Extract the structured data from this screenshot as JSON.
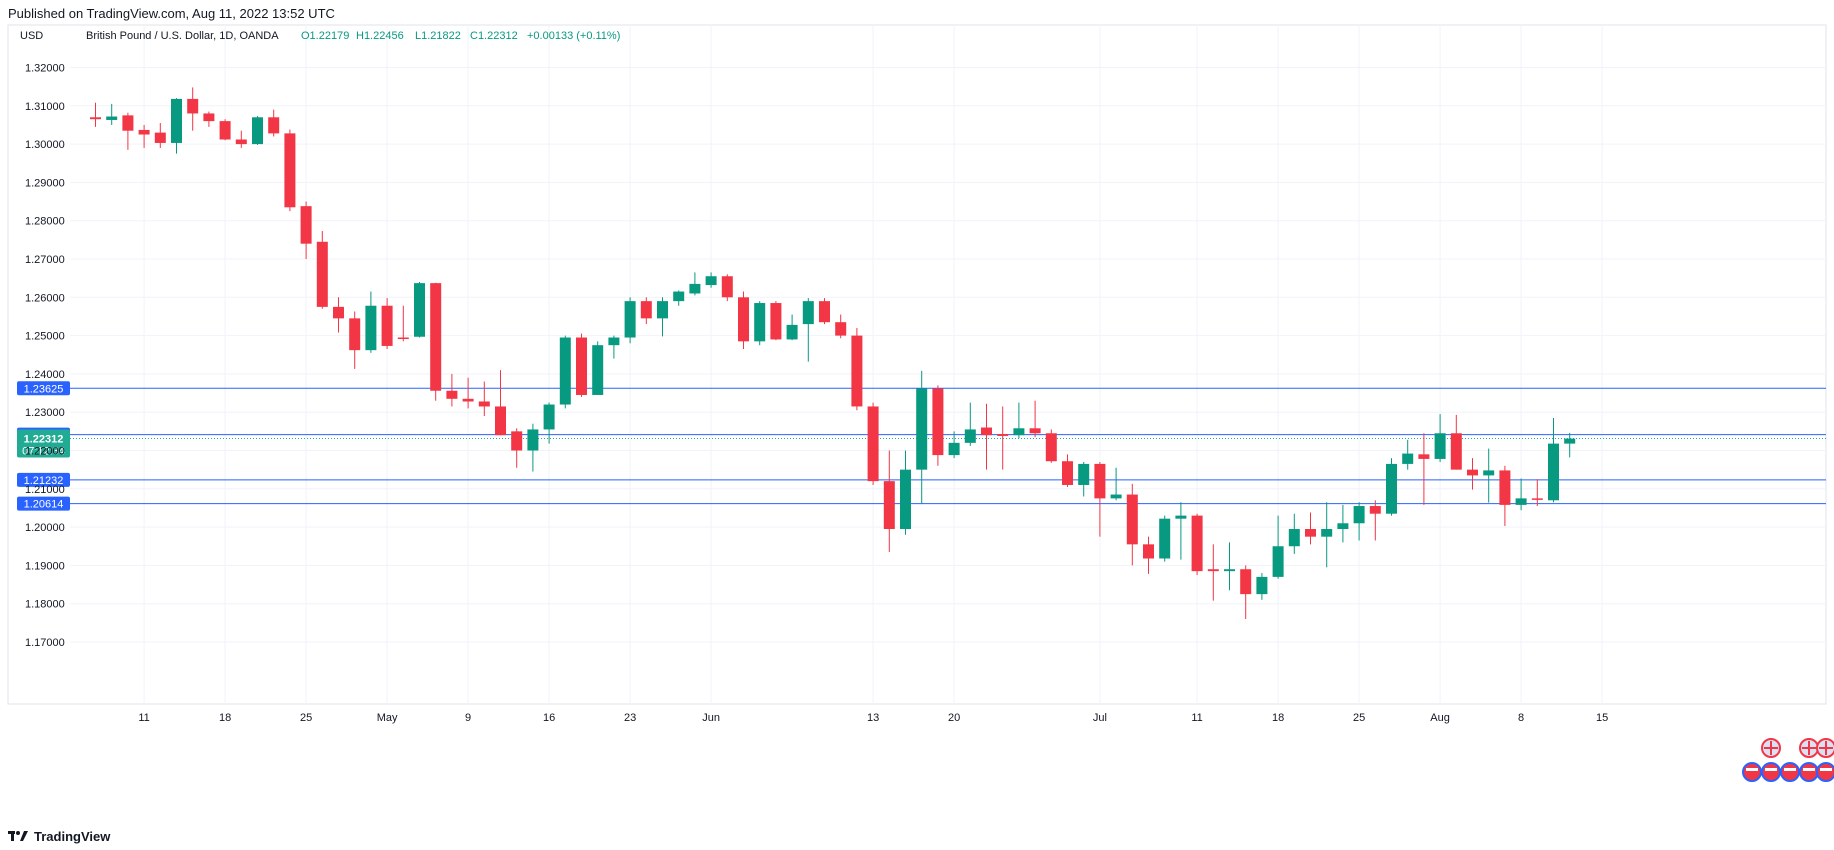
{
  "published": "Published on TradingView.com, Aug 11, 2022 13:52 UTC",
  "footer": {
    "brand": "TradingView",
    "logo_icon": "tradingview-logo-icon"
  },
  "colors": {
    "up": "#089981",
    "down": "#f23645",
    "grid": "#f0f3fa",
    "hline": "#2962ff",
    "hline_teal": "#22ab94",
    "axis_text": "#131722"
  },
  "chart_data": {
    "type": "candlestick",
    "currency": "USD",
    "symbol": "British Pound / U.S. Dollar, 1D, OANDA",
    "ohlc_header": {
      "O": "O1.22179",
      "H": "H1.22456",
      "L": "L1.21822",
      "C": "C1.22312",
      "change": "+0.00133 (+0.11%)"
    },
    "ylim": [
      1.1625,
      1.3265
    ],
    "y_ticks": [
      "1.32000",
      "1.31000",
      "1.30000",
      "1.29000",
      "1.28000",
      "1.27000",
      "1.26000",
      "1.25000",
      "1.24000",
      "1.23000",
      "1.22000",
      "1.21000",
      "1.20000",
      "1.19000",
      "1.18000",
      "1.17000"
    ],
    "x_ticks": [
      {
        "label": "11",
        "index": 3
      },
      {
        "label": "18",
        "index": 8
      },
      {
        "label": "25",
        "index": 13
      },
      {
        "label": "May",
        "index": 18
      },
      {
        "label": "9",
        "index": 23
      },
      {
        "label": "16",
        "index": 28
      },
      {
        "label": "23",
        "index": 33
      },
      {
        "label": "Jun",
        "index": 38
      },
      {
        "label": "13",
        "index": 48
      },
      {
        "label": "20",
        "index": 53
      },
      {
        "label": "Jul",
        "index": 62
      },
      {
        "label": "11",
        "index": 68
      },
      {
        "label": "18",
        "index": 73
      },
      {
        "label": "25",
        "index": 78
      },
      {
        "label": "Aug",
        "index": 83
      },
      {
        "label": "8",
        "index": 88
      },
      {
        "label": "15",
        "index": 93
      }
    ],
    "horizontal_lines": [
      {
        "label": "1.23625",
        "value": 1.23625,
        "color": "#2962ff"
      },
      {
        "label": "1.22415",
        "value": 1.22415,
        "color": "#2962ff"
      },
      {
        "label": "1.21232",
        "value": 1.21232,
        "color": "#2962ff"
      },
      {
        "label": "1.20614",
        "value": 1.20614,
        "color": "#2962ff"
      }
    ],
    "last_price": {
      "label": "1.22312",
      "value": 1.22312,
      "countdown": "07:12:34",
      "color": "#22ab94"
    },
    "candles": [
      {
        "i": 0,
        "o": 1.307,
        "h": 1.3108,
        "l": 1.3045,
        "c": 1.3065
      },
      {
        "i": 1,
        "o": 1.3063,
        "h": 1.3105,
        "l": 1.305,
        "c": 1.3072
      },
      {
        "i": 2,
        "o": 1.3075,
        "h": 1.3082,
        "l": 1.2985,
        "c": 1.3035
      },
      {
        "i": 3,
        "o": 1.3037,
        "h": 1.305,
        "l": 1.299,
        "c": 1.3025
      },
      {
        "i": 4,
        "o": 1.303,
        "h": 1.3055,
        "l": 1.299,
        "c": 1.3003
      },
      {
        "i": 5,
        "o": 1.3003,
        "h": 1.312,
        "l": 1.2975,
        "c": 1.3118
      },
      {
        "i": 6,
        "o": 1.3118,
        "h": 1.3148,
        "l": 1.3035,
        "c": 1.308
      },
      {
        "i": 7,
        "o": 1.308,
        "h": 1.3085,
        "l": 1.3045,
        "c": 1.306
      },
      {
        "i": 8,
        "o": 1.306,
        "h": 1.3065,
        "l": 1.301,
        "c": 1.3012
      },
      {
        "i": 9,
        "o": 1.3012,
        "h": 1.3035,
        "l": 1.299,
        "c": 1.3
      },
      {
        "i": 10,
        "o": 1.3,
        "h": 1.3073,
        "l": 1.2998,
        "c": 1.307
      },
      {
        "i": 11,
        "o": 1.307,
        "h": 1.309,
        "l": 1.302,
        "c": 1.3028
      },
      {
        "i": 12,
        "o": 1.3028,
        "h": 1.3038,
        "l": 1.2825,
        "c": 1.2835
      },
      {
        "i": 13,
        "o": 1.2838,
        "h": 1.285,
        "l": 1.27,
        "c": 1.274
      },
      {
        "i": 14,
        "o": 1.2745,
        "h": 1.2773,
        "l": 1.257,
        "c": 1.2575
      },
      {
        "i": 15,
        "o": 1.2575,
        "h": 1.26,
        "l": 1.2508,
        "c": 1.2545
      },
      {
        "i": 16,
        "o": 1.2545,
        "h": 1.2563,
        "l": 1.2413,
        "c": 1.2462
      },
      {
        "i": 17,
        "o": 1.2462,
        "h": 1.2615,
        "l": 1.2455,
        "c": 1.2578
      },
      {
        "i": 18,
        "o": 1.2578,
        "h": 1.2598,
        "l": 1.2465,
        "c": 1.2473
      },
      {
        "i": 19,
        "o": 1.2495,
        "h": 1.2578,
        "l": 1.2485,
        "c": 1.2492
      },
      {
        "i": 20,
        "o": 1.2497,
        "h": 1.264,
        "l": 1.2495,
        "c": 1.2637
      },
      {
        "i": 21,
        "o": 1.2637,
        "h": 1.2638,
        "l": 1.233,
        "c": 1.2356
      },
      {
        "i": 22,
        "o": 1.2356,
        "h": 1.24,
        "l": 1.2315,
        "c": 1.2335
      },
      {
        "i": 23,
        "o": 1.2335,
        "h": 1.239,
        "l": 1.231,
        "c": 1.2328
      },
      {
        "i": 24,
        "o": 1.2328,
        "h": 1.238,
        "l": 1.229,
        "c": 1.2315
      },
      {
        "i": 25,
        "o": 1.2315,
        "h": 1.241,
        "l": 1.224,
        "c": 1.224
      },
      {
        "i": 26,
        "o": 1.225,
        "h": 1.2258,
        "l": 1.2155,
        "c": 1.22
      },
      {
        "i": 27,
        "o": 1.22,
        "h": 1.227,
        "l": 1.2145,
        "c": 1.2255
      },
      {
        "i": 28,
        "o": 1.2255,
        "h": 1.2325,
        "l": 1.2218,
        "c": 1.232
      },
      {
        "i": 29,
        "o": 1.232,
        "h": 1.25,
        "l": 1.231,
        "c": 1.2495
      },
      {
        "i": 30,
        "o": 1.2495,
        "h": 1.2505,
        "l": 1.234,
        "c": 1.2345
      },
      {
        "i": 31,
        "o": 1.2345,
        "h": 1.2485,
        "l": 1.2345,
        "c": 1.2475
      },
      {
        "i": 32,
        "o": 1.2475,
        "h": 1.25,
        "l": 1.244,
        "c": 1.2495
      },
      {
        "i": 33,
        "o": 1.2495,
        "h": 1.26,
        "l": 1.248,
        "c": 1.259
      },
      {
        "i": 34,
        "o": 1.259,
        "h": 1.26,
        "l": 1.253,
        "c": 1.2545
      },
      {
        "i": 35,
        "o": 1.2545,
        "h": 1.26,
        "l": 1.2498,
        "c": 1.259
      },
      {
        "i": 36,
        "o": 1.259,
        "h": 1.2618,
        "l": 1.2578,
        "c": 1.2615
      },
      {
        "i": 37,
        "o": 1.261,
        "h": 1.2665,
        "l": 1.2605,
        "c": 1.2635
      },
      {
        "i": 38,
        "o": 1.2632,
        "h": 1.2665,
        "l": 1.2625,
        "c": 1.2655
      },
      {
        "i": 39,
        "o": 1.2655,
        "h": 1.266,
        "l": 1.259,
        "c": 1.26
      },
      {
        "i": 40,
        "o": 1.26,
        "h": 1.2615,
        "l": 1.2465,
        "c": 1.2485
      },
      {
        "i": 41,
        "o": 1.2485,
        "h": 1.259,
        "l": 1.2475,
        "c": 1.2585
      },
      {
        "i": 42,
        "o": 1.2585,
        "h": 1.259,
        "l": 1.2488,
        "c": 1.249
      },
      {
        "i": 43,
        "o": 1.249,
        "h": 1.2555,
        "l": 1.2488,
        "c": 1.2528
      },
      {
        "i": 44,
        "o": 1.253,
        "h": 1.2598,
        "l": 1.2432,
        "c": 1.259
      },
      {
        "i": 45,
        "o": 1.259,
        "h": 1.2598,
        "l": 1.253,
        "c": 1.2535
      },
      {
        "i": 46,
        "o": 1.2535,
        "h": 1.2555,
        "l": 1.2493,
        "c": 1.25
      },
      {
        "i": 47,
        "o": 1.25,
        "h": 1.252,
        "l": 1.2305,
        "c": 1.2315
      },
      {
        "i": 48,
        "o": 1.2315,
        "h": 1.2325,
        "l": 1.211,
        "c": 1.212
      },
      {
        "i": 49,
        "o": 1.212,
        "h": 1.22,
        "l": 1.1935,
        "c": 1.1995
      },
      {
        "i": 50,
        "o": 1.1995,
        "h": 1.22,
        "l": 1.198,
        "c": 1.215
      },
      {
        "i": 51,
        "o": 1.215,
        "h": 1.2408,
        "l": 1.206,
        "c": 1.2362
      },
      {
        "i": 52,
        "o": 1.2362,
        "h": 1.237,
        "l": 1.216,
        "c": 1.2188
      },
      {
        "i": 53,
        "o": 1.2188,
        "h": 1.225,
        "l": 1.218,
        "c": 1.222
      },
      {
        "i": 54,
        "o": 1.222,
        "h": 1.2325,
        "l": 1.2212,
        "c": 1.2255
      },
      {
        "i": 55,
        "o": 1.226,
        "h": 1.2322,
        "l": 1.215,
        "c": 1.224
      },
      {
        "i": 56,
        "o": 1.2243,
        "h": 1.2315,
        "l": 1.215,
        "c": 1.2238
      },
      {
        "i": 57,
        "o": 1.224,
        "h": 1.2325,
        "l": 1.2232,
        "c": 1.2258
      },
      {
        "i": 58,
        "o": 1.2258,
        "h": 1.233,
        "l": 1.2235,
        "c": 1.2245
      },
      {
        "i": 59,
        "o": 1.2245,
        "h": 1.2255,
        "l": 1.2168,
        "c": 1.2172
      },
      {
        "i": 60,
        "o": 1.2172,
        "h": 1.219,
        "l": 1.2105,
        "c": 1.211
      },
      {
        "i": 61,
        "o": 1.211,
        "h": 1.217,
        "l": 1.208,
        "c": 1.2165
      },
      {
        "i": 62,
        "o": 1.2165,
        "h": 1.217,
        "l": 1.1975,
        "c": 1.2075
      },
      {
        "i": 63,
        "o": 1.2075,
        "h": 1.2155,
        "l": 1.207,
        "c": 1.2085
      },
      {
        "i": 64,
        "o": 1.2085,
        "h": 1.2113,
        "l": 1.19,
        "c": 1.1955
      },
      {
        "i": 65,
        "o": 1.1955,
        "h": 1.1975,
        "l": 1.1878,
        "c": 1.1918
      },
      {
        "i": 66,
        "o": 1.1918,
        "h": 1.203,
        "l": 1.191,
        "c": 1.2022
      },
      {
        "i": 67,
        "o": 1.2022,
        "h": 1.2065,
        "l": 1.1915,
        "c": 1.203
      },
      {
        "i": 68,
        "o": 1.203,
        "h": 1.2035,
        "l": 1.1875,
        "c": 1.1885
      },
      {
        "i": 69,
        "o": 1.189,
        "h": 1.1955,
        "l": 1.1808,
        "c": 1.1885
      },
      {
        "i": 70,
        "o": 1.1885,
        "h": 1.196,
        "l": 1.1835,
        "c": 1.189
      },
      {
        "i": 71,
        "o": 1.189,
        "h": 1.19,
        "l": 1.176,
        "c": 1.1825
      },
      {
        "i": 72,
        "o": 1.1825,
        "h": 1.188,
        "l": 1.181,
        "c": 1.187
      },
      {
        "i": 73,
        "o": 1.187,
        "h": 1.203,
        "l": 1.1865,
        "c": 1.195
      },
      {
        "i": 74,
        "o": 1.195,
        "h": 1.2035,
        "l": 1.193,
        "c": 1.1995
      },
      {
        "i": 75,
        "o": 1.1995,
        "h": 1.2038,
        "l": 1.1955,
        "c": 1.1975
      },
      {
        "i": 76,
        "o": 1.1975,
        "h": 1.2065,
        "l": 1.1895,
        "c": 1.1995
      },
      {
        "i": 77,
        "o": 1.1995,
        "h": 1.2058,
        "l": 1.196,
        "c": 1.201
      },
      {
        "i": 78,
        "o": 1.201,
        "h": 1.2065,
        "l": 1.1965,
        "c": 1.2055
      },
      {
        "i": 79,
        "o": 1.2055,
        "h": 1.207,
        "l": 1.1965,
        "c": 1.2035
      },
      {
        "i": 80,
        "o": 1.2035,
        "h": 1.218,
        "l": 1.203,
        "c": 1.2165
      },
      {
        "i": 81,
        "o": 1.2165,
        "h": 1.2228,
        "l": 1.215,
        "c": 1.2192
      },
      {
        "i": 82,
        "o": 1.219,
        "h": 1.2245,
        "l": 1.2058,
        "c": 1.2178
      },
      {
        "i": 83,
        "o": 1.2178,
        "h": 1.2295,
        "l": 1.217,
        "c": 1.2245
      },
      {
        "i": 84,
        "o": 1.2245,
        "h": 1.2293,
        "l": 1.215,
        "c": 1.215
      },
      {
        "i": 85,
        "o": 1.215,
        "h": 1.218,
        "l": 1.2098,
        "c": 1.2135
      },
      {
        "i": 86,
        "o": 1.2135,
        "h": 1.2205,
        "l": 1.2064,
        "c": 1.2148
      },
      {
        "i": 87,
        "o": 1.2148,
        "h": 1.216,
        "l": 1.2003,
        "c": 1.2058
      },
      {
        "i": 88,
        "o": 1.2058,
        "h": 1.2127,
        "l": 1.2044,
        "c": 1.2075
      },
      {
        "i": 89,
        "o": 1.2075,
        "h": 1.2125,
        "l": 1.2055,
        "c": 1.2072
      },
      {
        "i": 90,
        "o": 1.207,
        "h": 1.2285,
        "l": 1.2065,
        "c": 1.2218
      },
      {
        "i": 91,
        "o": 1.2218,
        "h": 1.2246,
        "l": 1.2182,
        "c": 1.2231
      }
    ]
  }
}
